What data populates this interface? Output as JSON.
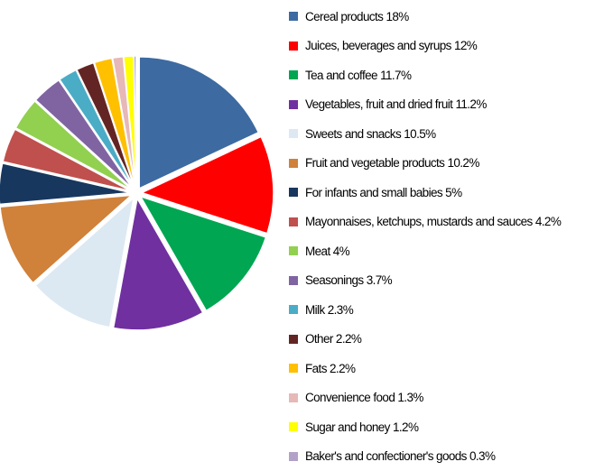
{
  "chart_data": {
    "type": "pie",
    "title": "",
    "legend_position": "right",
    "slices": [
      {
        "label": "Cereal products 18%",
        "value": 18,
        "color": "#3d6aa1"
      },
      {
        "label": "Juices, beverages and syrups 12%",
        "value": 12,
        "color": "#ff0000"
      },
      {
        "label": "Tea and coffee 11.7%",
        "value": 11.7,
        "color": "#00a651"
      },
      {
        "label": "Vegetables, fruit and dried fruit 11.2%",
        "value": 11.2,
        "color": "#7030a0"
      },
      {
        "label": "Sweets and snacks 10.5%",
        "value": 10.5,
        "color": "#dce9f2"
      },
      {
        "label": "Fruit and vegetable products 10.2%",
        "value": 10.2,
        "color": "#d0813a"
      },
      {
        "label": "For infants and small babies 5%",
        "value": 5,
        "color": "#17375e"
      },
      {
        "label": "Mayonnaises, ketchups, mustards and sauces 4.2%",
        "value": 4.2,
        "color": "#c0504d"
      },
      {
        "label": "Meat 4%",
        "value": 4,
        "color": "#92d050"
      },
      {
        "label": "Seasonings 3.7%",
        "value": 3.7,
        "color": "#8064a2"
      },
      {
        "label": "Milk 2.3%",
        "value": 2.3,
        "color": "#4bacc6"
      },
      {
        "label": "Other 2.2%",
        "value": 2.2,
        "color": "#632523"
      },
      {
        "label": "Fats 2.2%",
        "value": 2.2,
        "color": "#ffc000"
      },
      {
        "label": "Convenience food 1.3%",
        "value": 1.3,
        "color": "#e6b8b7"
      },
      {
        "label": "Sugar and honey 1.2%",
        "value": 1.2,
        "color": "#ffff00"
      },
      {
        "label": "Baker's and confectioner's goods 0.3%",
        "value": 0.3,
        "color": "#b3a2c7"
      }
    ]
  }
}
